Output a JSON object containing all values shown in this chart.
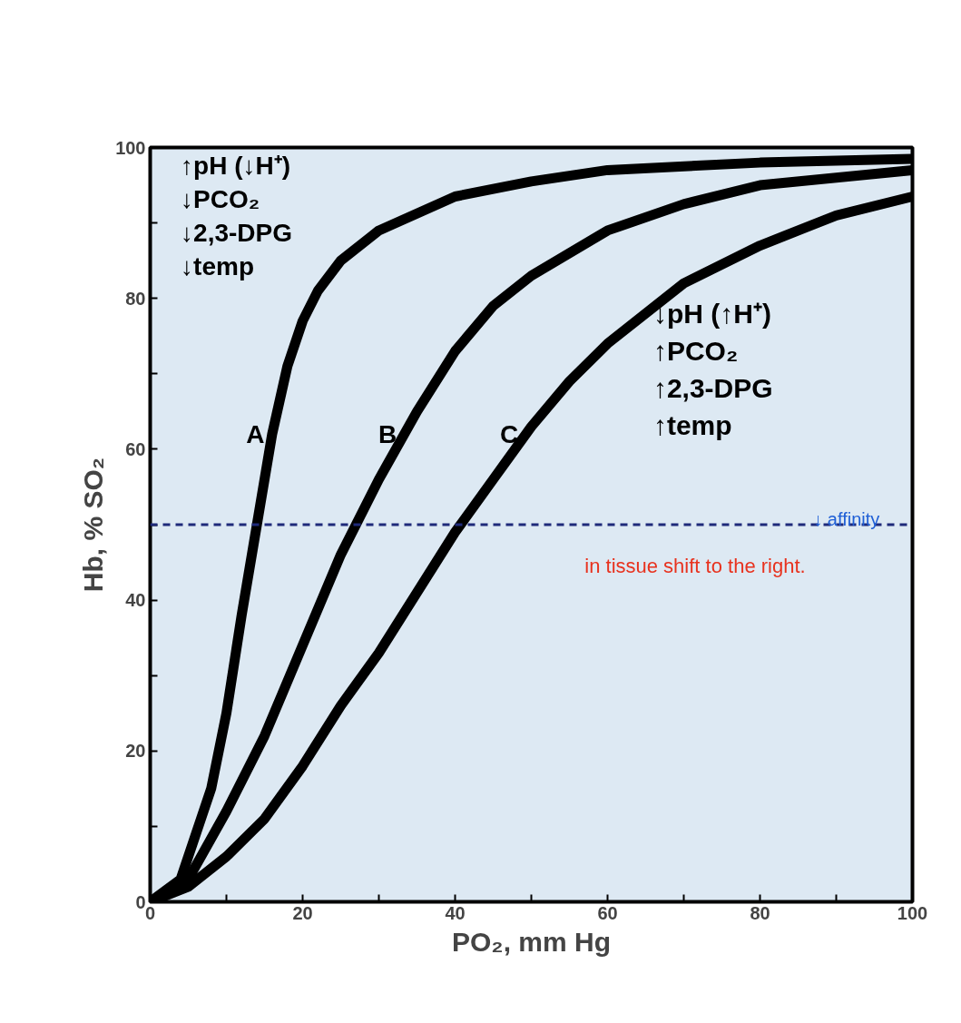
{
  "chart_data": {
    "type": "line",
    "xlabel": "PO₂, mm Hg",
    "ylabel": "Hb, % SO₂",
    "xlim": [
      0,
      100
    ],
    "ylim": [
      0,
      100
    ],
    "xticks": [
      0,
      {
        "value": 10,
        "label": null
      },
      20,
      {
        "value": 30,
        "label": null
      },
      40,
      {
        "value": 50,
        "label": null
      },
      60,
      {
        "value": 70,
        "label": null
      },
      80,
      {
        "value": 90,
        "label": null
      },
      100
    ],
    "yticks": [
      0,
      {
        "value": 10,
        "label": null
      },
      20,
      {
        "value": 30,
        "label": null
      },
      40,
      {
        "value": 50,
        "label": null
      },
      60,
      {
        "value": 70,
        "label": null
      },
      80,
      {
        "value": 90,
        "label": null
      },
      100
    ],
    "grid": false,
    "marker": "none",
    "line_style": "solid",
    "series": [
      {
        "name": "A",
        "color": "#000000",
        "x": [
          0,
          4,
          8,
          10,
          12,
          14,
          16,
          18,
          20,
          22,
          25,
          30,
          40,
          50,
          60,
          80,
          100
        ],
        "values": [
          0,
          3,
          15,
          25,
          38,
          50,
          62,
          71,
          77,
          81,
          85,
          89,
          93.5,
          95.5,
          97,
          98,
          98.5
        ]
      },
      {
        "name": "B",
        "color": "#000000",
        "x": [
          0,
          5,
          10,
          15,
          20,
          25,
          27,
          30,
          35,
          40,
          45,
          50,
          60,
          70,
          80,
          90,
          100
        ],
        "values": [
          0,
          3,
          12,
          22,
          34,
          46,
          50,
          56,
          65,
          73,
          79,
          83,
          89,
          92.5,
          95,
          96,
          97
        ]
      },
      {
        "name": "C",
        "color": "#000000",
        "x": [
          0,
          5,
          10,
          15,
          20,
          25,
          30,
          35,
          40,
          45,
          50,
          55,
          60,
          70,
          80,
          90,
          100
        ],
        "values": [
          0,
          2,
          6,
          11,
          18,
          26,
          33,
          41,
          49,
          56,
          63,
          69,
          74,
          82,
          87,
          91,
          93.5
        ]
      }
    ],
    "ref_lines": [
      {
        "axis": "y",
        "value": 50,
        "color": "#1f2a7a",
        "line_style": "dashed"
      }
    ],
    "annotations": [
      "↑pH (↓H⁺)\n↓PCO₂\n↓2,3-DPG\n↓temp",
      "↓pH (↑H⁺)\n↑PCO₂\n↑2,3-DPG\n↑temp",
      "↓ affinity",
      "in tissue shift to the right."
    ]
  }
}
